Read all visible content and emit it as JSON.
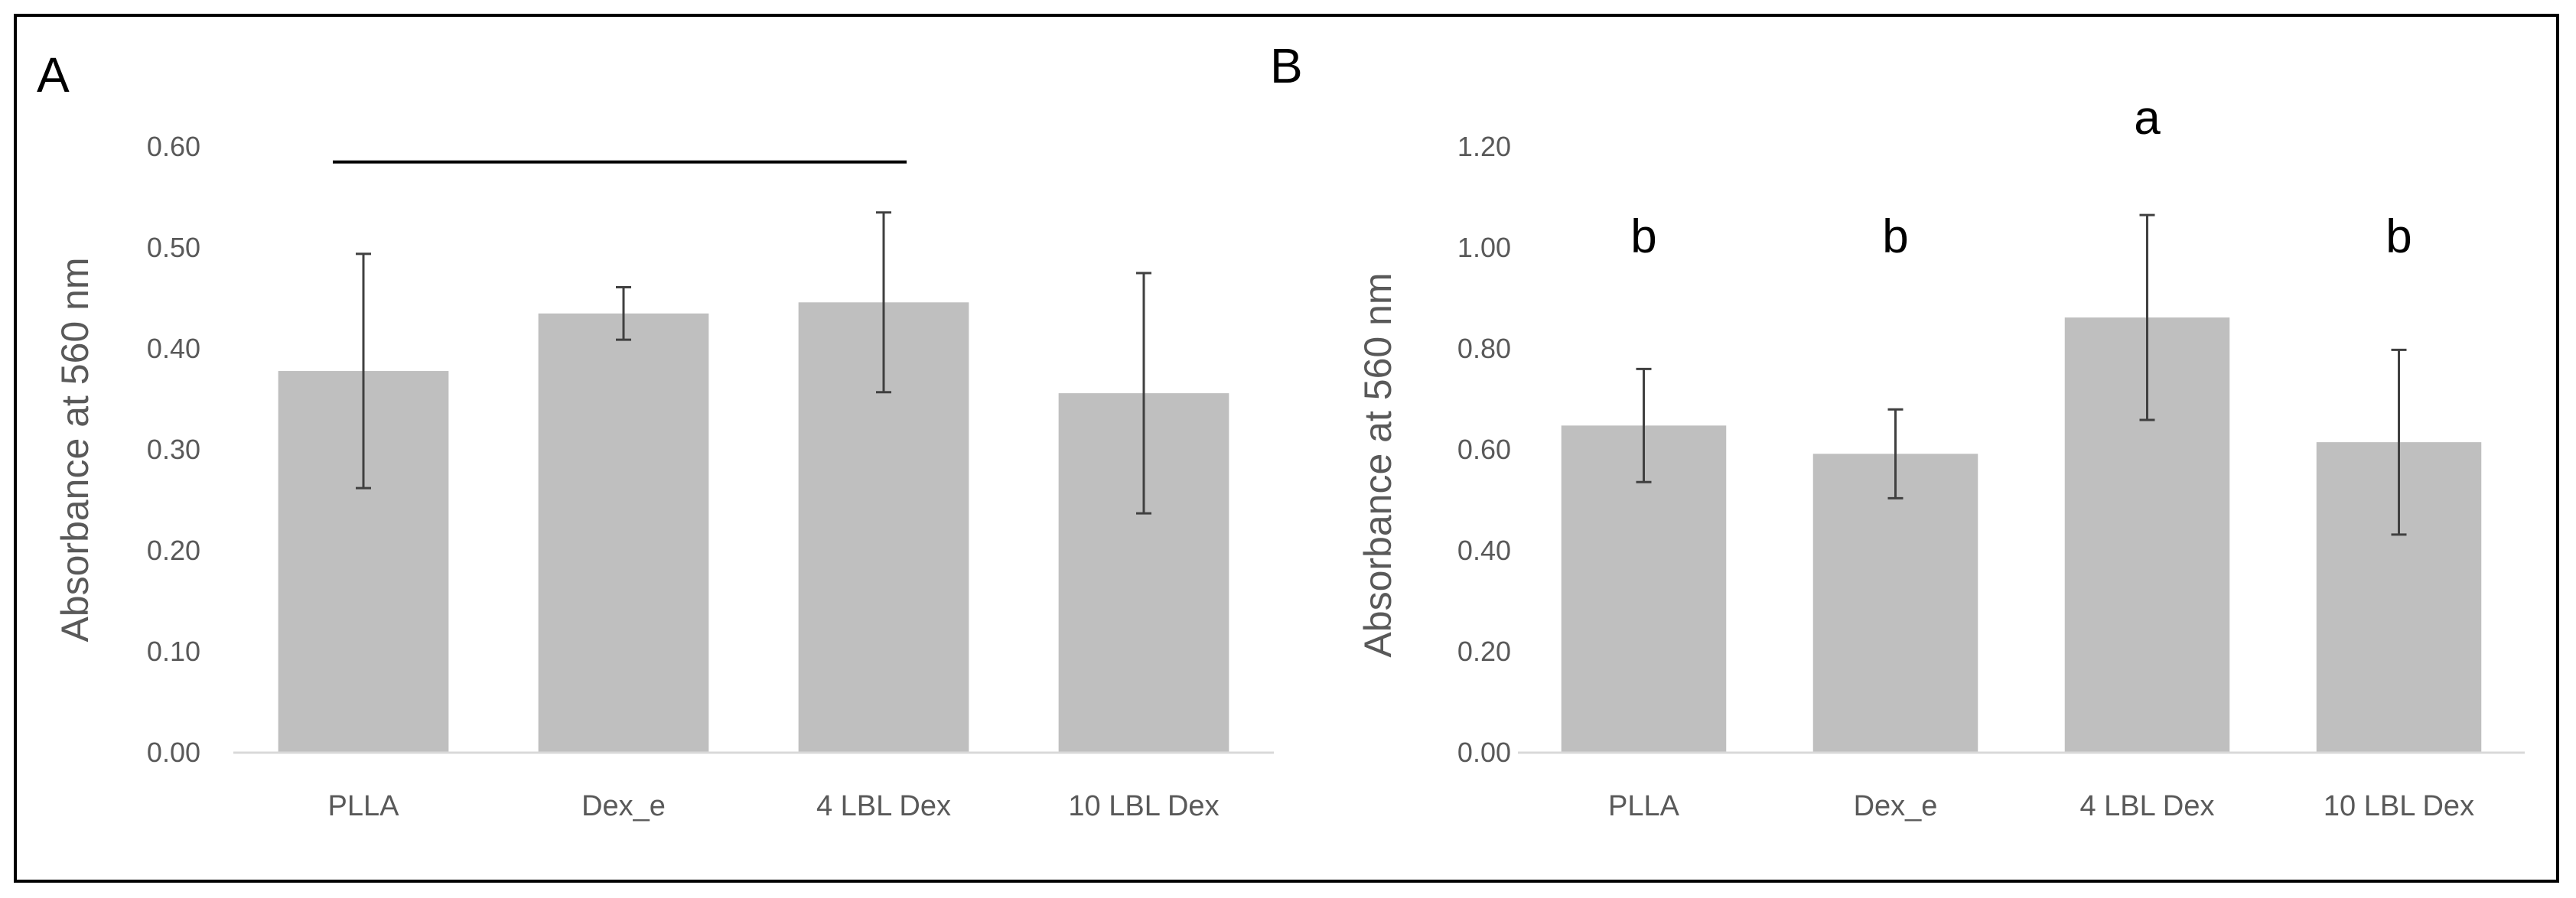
{
  "chart_data": [
    {
      "panel": "A",
      "type": "bar",
      "ylabel": "Absorbance at 560 nm",
      "ylim": [
        0,
        0.6
      ],
      "yticks": [
        "0.00",
        "0.10",
        "0.20",
        "0.30",
        "0.40",
        "0.50",
        "0.60"
      ],
      "tick_values": [
        0,
        0.1,
        0.2,
        0.3,
        0.4,
        0.5,
        0.6
      ],
      "categories": [
        "PLLA",
        "Dex_e",
        "4 LBL Dex",
        "10 LBL Dex"
      ],
      "values": [
        0.378,
        0.435,
        0.446,
        0.356
      ],
      "errors": [
        0.116,
        0.026,
        0.089,
        0.119
      ],
      "significance_line": {
        "from": "PLLA",
        "to": "4 LBL Dex",
        "y": 0.585
      },
      "significance_letters": []
    },
    {
      "panel": "B",
      "type": "bar",
      "ylabel": "Absorbance at 560 nm",
      "ylim": [
        0,
        1.2
      ],
      "yticks": [
        "0.00",
        "0.20",
        "0.40",
        "0.60",
        "0.80",
        "1.00",
        "1.20"
      ],
      "tick_values": [
        0,
        0.2,
        0.4,
        0.6,
        0.8,
        1.0,
        1.2
      ],
      "categories": [
        "PLLA",
        "Dex_e",
        "4 LBL Dex",
        "10 LBL Dex"
      ],
      "values": [
        0.648,
        0.592,
        0.862,
        0.615
      ],
      "errors": [
        0.112,
        0.088,
        0.203,
        0.183
      ],
      "significance_line": null,
      "significance_letters": [
        "b",
        "b",
        "a",
        "b"
      ]
    }
  ],
  "colors": {
    "bar": "#bfbfbf",
    "error": "#404040",
    "axis_text": "#595959"
  }
}
